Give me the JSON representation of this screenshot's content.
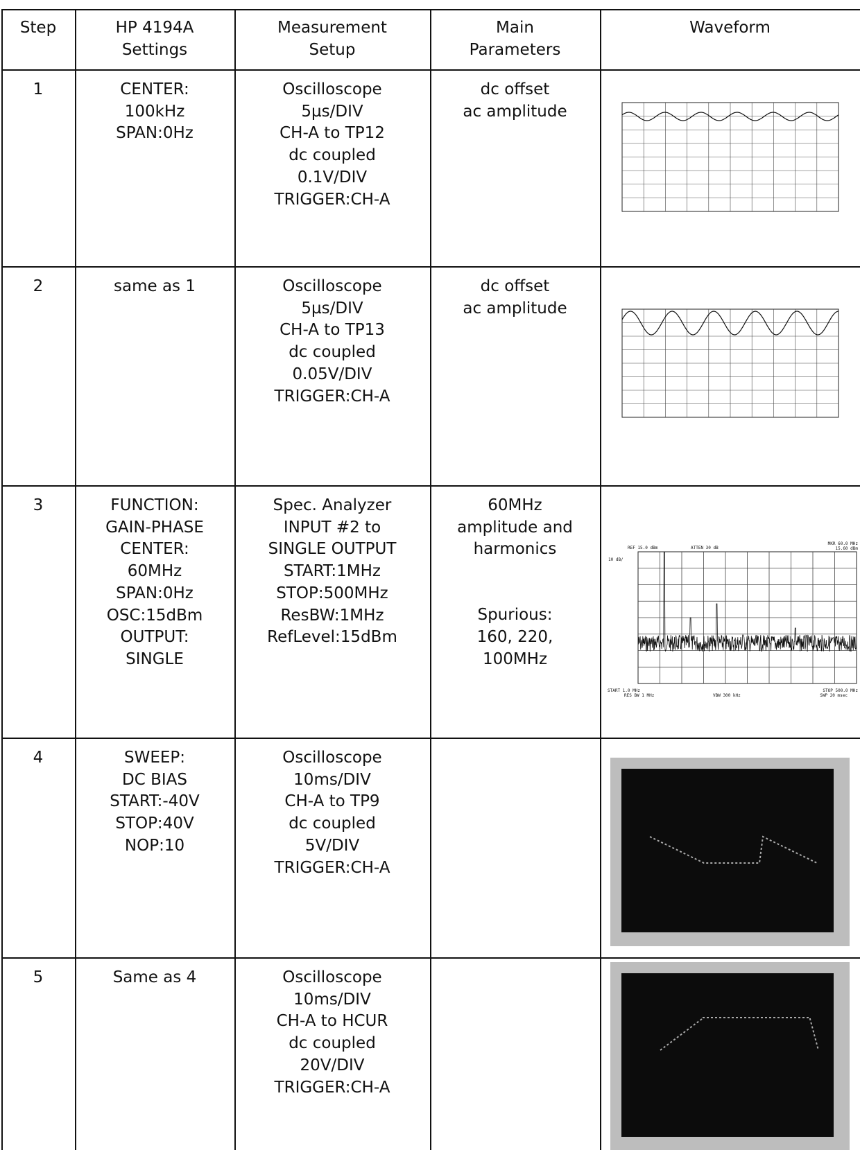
{
  "table": {
    "header": [
      [
        "Step"
      ],
      [
        "HP 4194A",
        "Settings"
      ],
      [
        "Measurement",
        "Setup"
      ],
      [
        "Main",
        "Parameters"
      ],
      [
        "Waveform"
      ]
    ],
    "rows": [
      {
        "step": "1",
        "settings": [
          "CENTER:",
          "100kHz",
          "SPAN:0Hz"
        ],
        "setup": [
          "Oscilloscope",
          "5µs/DIV",
          "CH-A to TP12",
          "dc coupled",
          "0.1V/DIV",
          "TRIGGER:CH-A"
        ],
        "parameters": [
          [
            "dc offset",
            "ac amplitude"
          ]
        ]
      },
      {
        "step": "2",
        "settings": [
          "same as 1"
        ],
        "setup": [
          "Oscilloscope",
          "5µs/DIV",
          "CH-A to TP13",
          "dc coupled",
          "0.05V/DIV",
          "TRIGGER:CH-A"
        ],
        "parameters": [
          [
            "dc offset",
            "ac amplitude"
          ]
        ]
      },
      {
        "step": "3",
        "settings": [
          "FUNCTION:",
          "GAIN-PHASE",
          "CENTER:",
          "60MHz",
          "SPAN:0Hz",
          "OSC:15dBm",
          "OUTPUT:",
          "SINGLE"
        ],
        "setup": [
          "Spec. Analyzer",
          "INPUT #2 to",
          "SINGLE OUTPUT",
          "START:1MHz",
          "STOP:500MHz",
          "ResBW:1MHz",
          "RefLevel:15dBm"
        ],
        "parameters": [
          [
            "60MHz",
            "amplitude and",
            "harmonics"
          ],
          [
            "Spurious:",
            "160, 220,",
            "100MHz"
          ]
        ],
        "waveform_labels": {
          "ref": "REF 15.0 dBm",
          "atten": "ATTEN 30 dB",
          "marker": [
            "MKR 60.0 MHz",
            "15.60 dBm"
          ],
          "scale": "10 dB/",
          "start": "START 1.0 MHz",
          "resbw": "RES BW 1 MHz",
          "vbw": "VBW 300 kHz",
          "stop": "STOP 500.0 MHz",
          "sweep": "SWP 20 msec"
        }
      },
      {
        "step": "4",
        "settings": [
          "SWEEP:",
          "DC BIAS",
          "START:-40V",
          "STOP:40V",
          "NOP:10"
        ],
        "setup": [
          "Oscilloscope",
          "10ms/DIV",
          "CH-A to TP9",
          "dc coupled",
          "5V/DIV",
          "TRIGGER:CH-A"
        ],
        "parameters": []
      },
      {
        "step": "5",
        "settings": [
          "Same as 4"
        ],
        "setup": [
          "Oscilloscope",
          "10ms/DIV",
          "CH-A to HCUR",
          "dc coupled",
          "20V/DIV",
          "TRIGGER:CH-A"
        ],
        "parameters": []
      }
    ]
  }
}
